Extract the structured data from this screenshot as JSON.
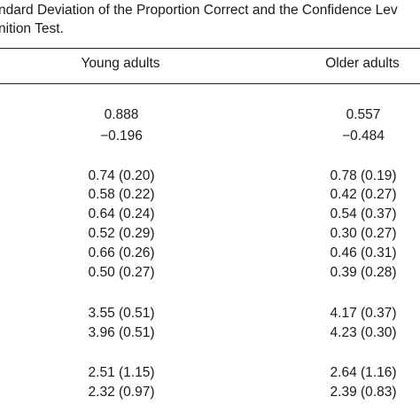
{
  "caption": {
    "line1": "ndard Deviation of the Proportion Correct and the Confidence Lev",
    "line2": "nition Test."
  },
  "columns": {
    "young": "Young adults",
    "older": "Older adults"
  },
  "rows": [
    {
      "young": "0.888",
      "older": "0.557"
    },
    {
      "young": "−0.196",
      "older": "−0.484"
    },
    {
      "young": "0.74 (0.20)",
      "older": "0.78 (0.19)"
    },
    {
      "young": "0.58 (0.22)",
      "older": "0.42 (0.27)"
    },
    {
      "young": "0.64 (0.24)",
      "older": "0.54 (0.37)"
    },
    {
      "young": "0.52 (0.29)",
      "older": "0.30 (0.27)"
    },
    {
      "young": "0.66 (0.26)",
      "older": "0.46 (0.31)"
    },
    {
      "young": "0.50 (0.27)",
      "older": "0.39 (0.28)"
    },
    {
      "young": "3.55 (0.51)",
      "older": "4.17 (0.37)"
    },
    {
      "young": "3.96 (0.51)",
      "older": "4.23 (0.30)"
    },
    {
      "young": "2.51 (1.15)",
      "older": "2.64 (1.16)"
    },
    {
      "young": "2.32 (0.97)",
      "older": "2.39 (0.83)"
    }
  ]
}
